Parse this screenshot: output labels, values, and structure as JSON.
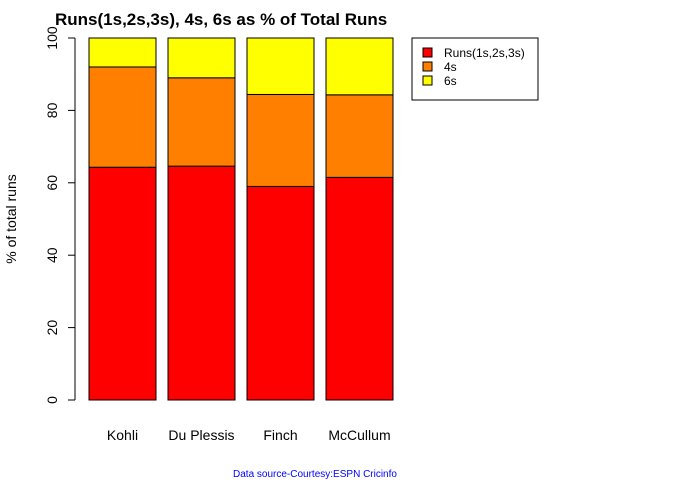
{
  "chart_data": {
    "type": "bar",
    "stacked": true,
    "title": "Runs(1s,2s,3s), 4s, 6s as % of Total Runs",
    "ylabel": "% of total runs",
    "xlabel": "",
    "ylim": [
      0,
      100
    ],
    "yticks": [
      0,
      20,
      40,
      60,
      80,
      100
    ],
    "grid": false,
    "legend_position": "top-right",
    "categories": [
      "Kohli",
      "Du Plessis",
      "Finch",
      "McCullum"
    ],
    "series": [
      {
        "name": "Runs(1s,2s,3s)",
        "color": "#ff0000",
        "values": [
          64.3,
          64.6,
          59.0,
          61.5
        ]
      },
      {
        "name": "4s",
        "color": "#ff8000",
        "values": [
          27.7,
          24.4,
          25.4,
          22.8
        ]
      },
      {
        "name": "6s",
        "color": "#ffff00",
        "values": [
          8.0,
          11.0,
          15.6,
          15.7
        ]
      }
    ]
  },
  "source_note": "Data source-Courtesy:ESPN Cricinfo",
  "source_color": "#0000ff"
}
